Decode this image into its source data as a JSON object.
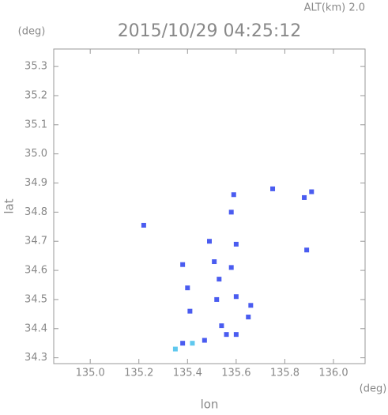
{
  "chart_data": {
    "type": "scatter",
    "annotation": "ALT(km) 2.0",
    "title": "2015/10/29 04:25:12",
    "y_unit": "(deg)",
    "x_unit": "(deg)",
    "xlabel": "lon",
    "ylabel": "lat",
    "xlim": [
      134.85,
      136.13
    ],
    "ylim": [
      34.28,
      35.36
    ],
    "xticks": [
      {
        "value": 135.0,
        "label": "135.0"
      },
      135.2,
      135.4,
      135.6,
      135.8,
      {
        "value": 136.0,
        "label": "136.0"
      }
    ],
    "yticks": [
      34.3,
      34.4,
      34.5,
      34.6,
      34.7,
      34.8,
      34.9,
      {
        "value": 35.0,
        "label": "35.0"
      },
      35.1,
      35.2,
      35.3
    ],
    "series": [
      {
        "color": "#4a5cf0",
        "x": [
          135.22,
          135.59,
          135.58,
          135.75,
          135.88,
          135.91,
          135.89,
          135.49,
          135.6,
          135.38,
          135.51,
          135.58,
          135.53,
          135.4,
          135.52,
          135.6,
          135.66,
          135.41,
          135.54,
          135.65,
          135.38,
          135.47,
          135.56,
          135.6
        ],
        "values": [
          34.755,
          34.86,
          34.8,
          34.88,
          34.85,
          34.87,
          34.67,
          34.7,
          34.69,
          34.62,
          34.63,
          34.61,
          34.57,
          34.54,
          34.5,
          34.51,
          34.48,
          34.46,
          34.41,
          34.44,
          34.35,
          34.36,
          34.38,
          34.38
        ]
      },
      {
        "color": "#5fc8ee",
        "x": [
          135.35,
          135.42
        ],
        "values": [
          34.33,
          34.35
        ]
      }
    ]
  }
}
